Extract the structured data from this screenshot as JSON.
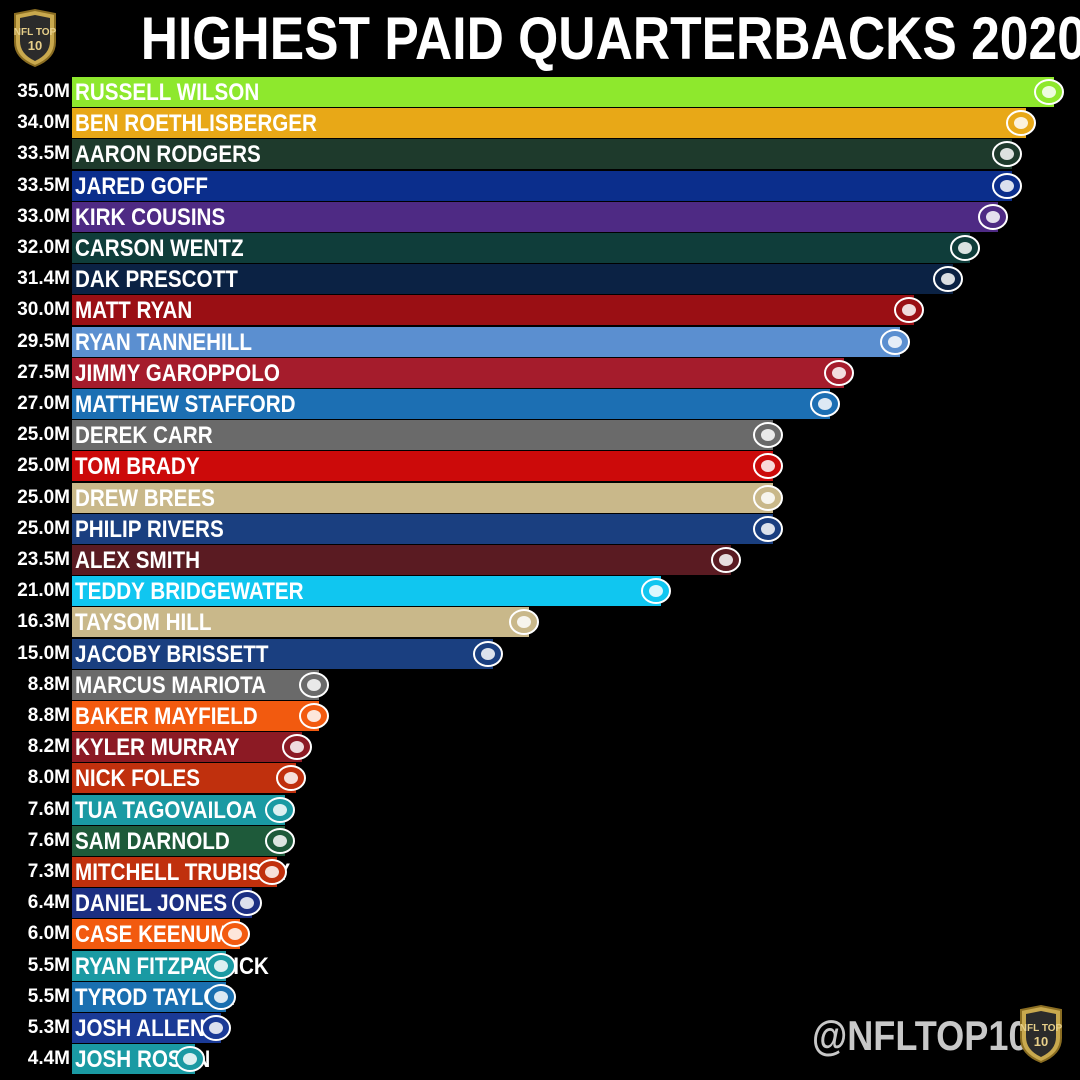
{
  "title": "HIGHEST PAID QUARTERBACKS 2020",
  "brand_badge": "NFL TOP 10",
  "handle": "@NFLTOP10",
  "chart_data": {
    "type": "bar",
    "orientation": "horizontal",
    "title": "HIGHEST PAID QUARTERBACKS 2020",
    "unit": "M",
    "xlim": [
      0,
      35
    ],
    "bars": [
      {
        "label": "RUSSELL WILSON",
        "value": 35.0,
        "value_label": "35.0M",
        "color": "#8ee82d",
        "text_color": "#ffffff",
        "logo": "seahawks-icon"
      },
      {
        "label": "BEN ROETHLISBERGER",
        "value": 34.0,
        "value_label": "34.0M",
        "color": "#e8a817",
        "text_color": "#ffffff",
        "logo": "steelers-icon"
      },
      {
        "label": "AARON RODGERS",
        "value": 33.5,
        "value_label": "33.5M",
        "color": "#1e3a2c",
        "text_color": "#ffffff",
        "logo": "packers-icon"
      },
      {
        "label": "JARED GOFF",
        "value": 33.5,
        "value_label": "33.5M",
        "color": "#0b2e8c",
        "text_color": "#ffffff",
        "logo": "rams-icon"
      },
      {
        "label": "KIRK COUSINS",
        "value": 33.0,
        "value_label": "33.0M",
        "color": "#4e2a84",
        "text_color": "#ffffff",
        "logo": "vikings-icon"
      },
      {
        "label": "CARSON WENTZ",
        "value": 32.0,
        "value_label": "32.0M",
        "color": "#0f3d3a",
        "text_color": "#ffffff",
        "logo": "eagles-icon"
      },
      {
        "label": "DAK PRESCOTT",
        "value": 31.4,
        "value_label": "31.4M",
        "color": "#0b2244",
        "text_color": "#ffffff",
        "logo": "cowboys-icon"
      },
      {
        "label": "MATT RYAN",
        "value": 30.0,
        "value_label": "30.0M",
        "color": "#9a0f14",
        "text_color": "#ffffff",
        "logo": "falcons-icon"
      },
      {
        "label": "RYAN TANNEHILL",
        "value": 29.5,
        "value_label": "29.5M",
        "color": "#5b8fd0",
        "text_color": "#ffffff",
        "logo": "titans-icon"
      },
      {
        "label": "JIMMY GAROPPOLO",
        "value": 27.5,
        "value_label": "27.5M",
        "color": "#a51c2c",
        "text_color": "#ffffff",
        "logo": "49ers-icon"
      },
      {
        "label": "MATTHEW STAFFORD",
        "value": 27.0,
        "value_label": "27.0M",
        "color": "#1c6fb3",
        "text_color": "#ffffff",
        "logo": "lions-icon"
      },
      {
        "label": "DEREK CARR",
        "value": 25.0,
        "value_label": "25.0M",
        "color": "#6a6a6a",
        "text_color": "#ffffff",
        "logo": "raiders-icon"
      },
      {
        "label": "TOM BRADY",
        "value": 25.0,
        "value_label": "25.0M",
        "color": "#cc0a0a",
        "text_color": "#ffffff",
        "logo": "buccaneers-icon"
      },
      {
        "label": "DREW BREES",
        "value": 25.0,
        "value_label": "25.0M",
        "color": "#c9b88a",
        "text_color": "#ffffff",
        "logo": "saints-icon"
      },
      {
        "label": "PHILIP RIVERS",
        "value": 25.0,
        "value_label": "25.0M",
        "color": "#1a3f80",
        "text_color": "#ffffff",
        "logo": "colts-icon"
      },
      {
        "label": "ALEX SMITH",
        "value": 23.5,
        "value_label": "23.5M",
        "color": "#5a1b22",
        "text_color": "#ffffff",
        "logo": "washington-icon"
      },
      {
        "label": "TEDDY BRIDGEWATER",
        "value": 21.0,
        "value_label": "21.0M",
        "color": "#10c6f0",
        "text_color": "#ffffff",
        "logo": "panthers-icon"
      },
      {
        "label": "TAYSOM HILL",
        "value": 16.3,
        "value_label": "16.3M",
        "color": "#c9b88a",
        "text_color": "#ffffff",
        "logo": "saints-icon"
      },
      {
        "label": "JACOBY BRISSETT",
        "value": 15.0,
        "value_label": "15.0M",
        "color": "#1a3f80",
        "text_color": "#ffffff",
        "logo": "colts-icon"
      },
      {
        "label": "MARCUS MARIOTA",
        "value": 8.8,
        "value_label": "8.8M",
        "color": "#6a6a6a",
        "text_color": "#ffffff",
        "logo": "raiders-icon"
      },
      {
        "label": "BAKER MAYFIELD",
        "value": 8.8,
        "value_label": "8.8M",
        "color": "#f25a0f",
        "text_color": "#ffffff",
        "logo": "browns-icon"
      },
      {
        "label": "KYLER MURRAY",
        "value": 8.2,
        "value_label": "8.2M",
        "color": "#8c1a24",
        "text_color": "#ffffff",
        "logo": "cardinals-icon"
      },
      {
        "label": "NICK FOLES",
        "value": 8.0,
        "value_label": "8.0M",
        "color": "#c0300d",
        "text_color": "#ffffff",
        "logo": "bears-icon"
      },
      {
        "label": "TUA TAGOVAILOA",
        "value": 7.6,
        "value_label": "7.6M",
        "color": "#1a9aa3",
        "text_color": "#ffffff",
        "logo": "dolphins-icon"
      },
      {
        "label": "SAM DARNOLD",
        "value": 7.6,
        "value_label": "7.6M",
        "color": "#1e5a3a",
        "text_color": "#ffffff",
        "logo": "jets-icon"
      },
      {
        "label": "MITCHELL TRUBISKY",
        "value": 7.3,
        "value_label": "7.3M",
        "color": "#c0300d",
        "text_color": "#ffffff",
        "logo": "bears-icon"
      },
      {
        "label": "DANIEL JONES",
        "value": 6.4,
        "value_label": "6.4M",
        "color": "#1c2f82",
        "text_color": "#ffffff",
        "logo": "giants-icon"
      },
      {
        "label": "CASE KEENUM",
        "value": 6.0,
        "value_label": "6.0M",
        "color": "#f25a0f",
        "text_color": "#ffffff",
        "logo": "browns-icon"
      },
      {
        "label": "RYAN FITZPATRICK",
        "value": 5.5,
        "value_label": "5.5M",
        "color": "#1a9aa3",
        "text_color": "#ffffff",
        "logo": "dolphins-icon"
      },
      {
        "label": "TYROD TAYLOR",
        "value": 5.5,
        "value_label": "5.5M",
        "color": "#1a6fb0",
        "text_color": "#ffffff",
        "logo": "chargers-icon"
      },
      {
        "label": "JOSH ALLEN",
        "value": 5.3,
        "value_label": "5.3M",
        "color": "#1a3a96",
        "text_color": "#ffffff",
        "logo": "bills-icon"
      },
      {
        "label": "JOSH ROSEN",
        "value": 4.4,
        "value_label": "4.4M",
        "color": "#1a9aa3",
        "text_color": "#ffffff",
        "logo": "dolphins-icon"
      }
    ]
  }
}
